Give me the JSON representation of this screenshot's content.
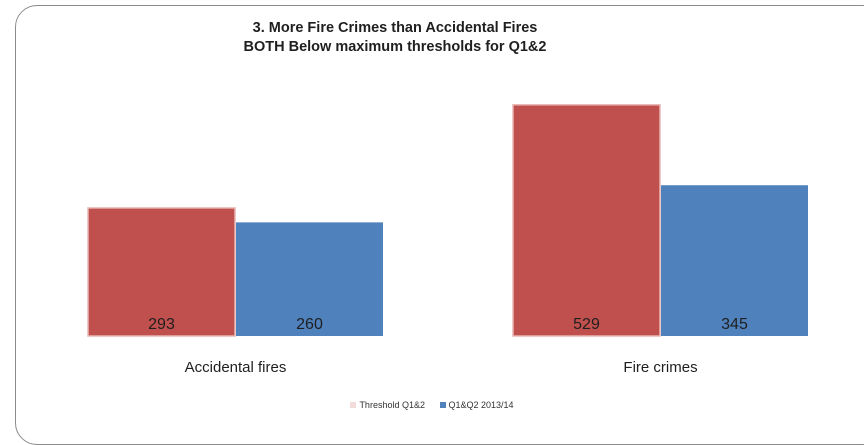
{
  "chart_data": {
    "type": "bar",
    "title_lines": [
      "3. More Fire Crimes than Accidental Fires",
      "BOTH Below maximum thresholds for Q1&2"
    ],
    "categories": [
      "Accidental fires",
      "Fire crimes"
    ],
    "series": [
      {
        "name": "Threshold Q1&2",
        "values": [
          293,
          529
        ],
        "color": "#c0504d"
      },
      {
        "name": "Q1&Q2 2013/14",
        "values": [
          260,
          345
        ],
        "color": "#4f81bd"
      }
    ],
    "data_labels": true,
    "ylim": [
      0,
      540
    ],
    "grid": false,
    "legend_position": "bottom"
  }
}
